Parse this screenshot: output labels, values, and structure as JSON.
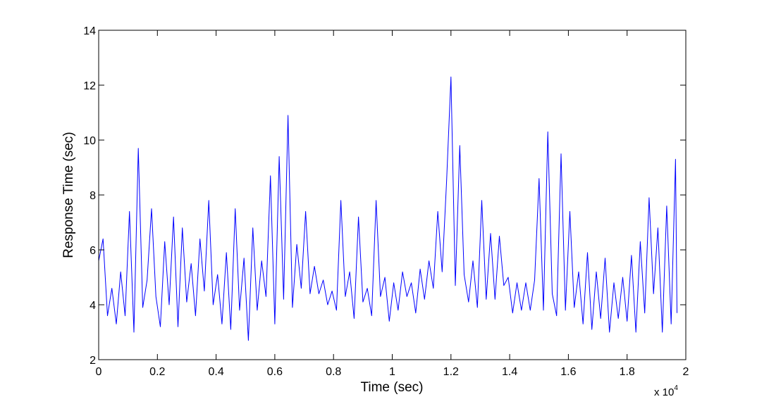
{
  "chart_data": {
    "type": "line",
    "title": "",
    "xlabel": "Time (sec)",
    "ylabel": "Response Time (sec)",
    "x_multiplier": {
      "base": "x 10",
      "exponent": "4"
    },
    "xlim": [
      0,
      20000
    ],
    "ylim": [
      2,
      14
    ],
    "x_ticks": [
      0,
      2000,
      4000,
      6000,
      8000,
      10000,
      12000,
      14000,
      16000,
      18000,
      20000
    ],
    "x_tick_labels": [
      "0",
      "0.2",
      "0.4",
      "0.6",
      "0.8",
      "1",
      "1.2",
      "1.4",
      "1.6",
      "1.8",
      "2"
    ],
    "y_ticks": [
      2,
      4,
      6,
      8,
      10,
      12,
      14
    ],
    "y_tick_labels": [
      "2",
      "4",
      "6",
      "8",
      "10",
      "12",
      "14"
    ],
    "grid": false,
    "line_color": "#0000ff",
    "series": [
      {
        "x": [
          0,
          150,
          300,
          450,
          600,
          750,
          900,
          1050,
          1200,
          1350,
          1500,
          1650,
          1800,
          1950,
          2100,
          2250,
          2400,
          2550,
          2700,
          2850,
          3000,
          3150,
          3300,
          3450,
          3600,
          3750,
          3900,
          4050,
          4200,
          4350,
          4500,
          4650,
          4800,
          4950,
          5100,
          5250,
          5400,
          5550,
          5700,
          5850,
          6000,
          6150,
          6300,
          6450,
          6600,
          6750,
          6900,
          7050,
          7200,
          7350,
          7500,
          7650,
          7800,
          7950,
          8100,
          8250,
          8400,
          8550,
          8700,
          8850,
          9000,
          9150,
          9300,
          9450,
          9600,
          9750,
          9900,
          10050,
          10200,
          10350,
          10500,
          10650,
          10800,
          10950,
          11100,
          11250,
          11400,
          11550,
          11700,
          11850,
          12000,
          12150,
          12300,
          12450,
          12600,
          12750,
          12900,
          13050,
          13200,
          13350,
          13500,
          13650,
          13800,
          13950,
          14100,
          14250,
          14400,
          14550,
          14700,
          14850,
          15000,
          15150,
          15300,
          15450,
          15600,
          15750,
          15900,
          16050,
          16200,
          16350,
          16500,
          16650,
          16800,
          16950,
          17100,
          17250,
          17400,
          17550,
          17700,
          17850,
          18000,
          18150,
          18300,
          18450,
          18600,
          18750,
          18900,
          19050,
          19200,
          19350,
          19500,
          19650,
          19700
        ],
        "y": [
          5.6,
          6.4,
          3.6,
          4.6,
          3.3,
          5.2,
          3.6,
          7.4,
          3.0,
          9.7,
          3.9,
          4.9,
          7.5,
          4.3,
          3.2,
          6.3,
          4.0,
          7.2,
          3.2,
          6.8,
          4.1,
          5.5,
          3.6,
          6.4,
          4.5,
          7.8,
          4.0,
          5.1,
          3.3,
          5.9,
          3.1,
          7.5,
          3.8,
          5.7,
          2.7,
          6.8,
          3.8,
          5.6,
          4.3,
          8.7,
          3.3,
          9.4,
          4.2,
          10.9,
          3.9,
          6.2,
          4.6,
          7.4,
          4.4,
          5.4,
          4.4,
          4.9,
          4.0,
          4.5,
          3.8,
          7.8,
          4.3,
          5.2,
          3.5,
          7.2,
          4.1,
          4.6,
          3.6,
          7.8,
          4.3,
          5.0,
          3.4,
          4.8,
          3.8,
          5.2,
          4.3,
          4.8,
          3.7,
          5.3,
          4.2,
          5.6,
          4.6,
          7.4,
          5.2,
          8.5,
          12.3,
          4.7,
          9.8,
          5.1,
          4.1,
          5.6,
          3.9,
          7.8,
          4.2,
          6.6,
          4.2,
          6.5,
          4.7,
          5.0,
          3.7,
          4.8,
          3.8,
          4.8,
          3.8,
          4.9,
          8.6,
          3.8,
          10.3,
          4.4,
          3.6,
          9.5,
          3.8,
          7.4,
          3.9,
          5.2,
          3.3,
          5.9,
          3.1,
          5.2,
          3.5,
          5.7,
          3.0,
          4.8,
          3.5,
          5.0,
          3.4,
          5.8,
          3.0,
          6.3,
          3.7,
          7.9,
          4.4,
          6.8,
          3.0,
          7.6,
          3.3,
          9.3,
          3.7
        ]
      }
    ]
  }
}
